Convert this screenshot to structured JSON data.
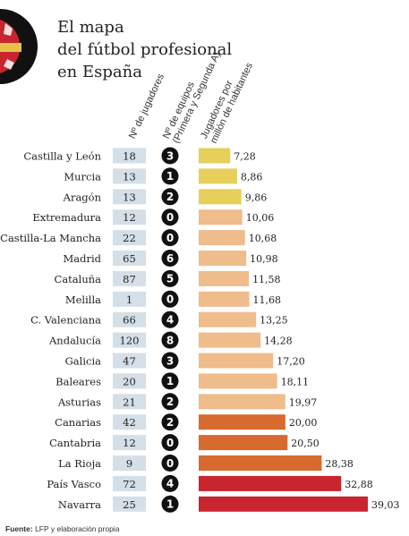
{
  "title": {
    "line1": "El mapa",
    "line2": "del fútbol profesional",
    "line3": "en España"
  },
  "columns": {
    "players": "Nº de jugadores",
    "teams_line1": "Nº de equipos",
    "teams_line2": "(Primera y Segunda A)",
    "per_million_line1": "Jugadores por",
    "per_million_line2": "millón de habitantes"
  },
  "source": {
    "label": "Fuente:",
    "text": "LFP y elaboración propia"
  },
  "colors": {
    "yellow": "#e6cf5a",
    "light_orange": "#efbc8b",
    "dark_orange": "#d76a2f",
    "red": "#c8252f",
    "box_fill": "#d4dfe8",
    "circle_fill": "#111111"
  },
  "chart_data": {
    "type": "bar",
    "categories": [
      "Castilla y León",
      "Murcia",
      "Aragón",
      "Extremadura",
      "Castilla-La Mancha",
      "Madrid",
      "Cataluña",
      "Melilla",
      "C. Valenciana",
      "Andalucía",
      "Galicia",
      "Baleares",
      "Asturias",
      "Canarias",
      "Cantabria",
      "La Rioja",
      "País Vasco",
      "Navarra"
    ],
    "players": [
      18,
      13,
      13,
      12,
      22,
      65,
      87,
      1,
      66,
      120,
      47,
      20,
      21,
      42,
      12,
      9,
      72,
      25
    ],
    "teams": [
      3,
      1,
      2,
      0,
      0,
      6,
      5,
      0,
      4,
      8,
      3,
      1,
      2,
      2,
      0,
      0,
      4,
      1
    ],
    "values": [
      7.28,
      8.86,
      9.86,
      10.06,
      10.68,
      10.98,
      11.58,
      11.68,
      13.25,
      14.28,
      17.2,
      18.11,
      19.97,
      20.0,
      20.5,
      28.38,
      32.88,
      39.03
    ],
    "value_labels": [
      "7,28",
      "8,86",
      "9,86",
      "10,06",
      "10,68",
      "10,98",
      "11,58",
      "11,68",
      "13,25",
      "14,28",
      "17,20",
      "18,11",
      "19,97",
      "20,00",
      "20,50",
      "28,38",
      "32,88",
      "39,03"
    ],
    "color_groups": [
      "yellow",
      "yellow",
      "yellow",
      "light_orange",
      "light_orange",
      "light_orange",
      "light_orange",
      "light_orange",
      "light_orange",
      "light_orange",
      "light_orange",
      "light_orange",
      "light_orange",
      "dark_orange",
      "dark_orange",
      "dark_orange",
      "red",
      "red"
    ],
    "xlim": [
      0,
      39.03
    ]
  }
}
